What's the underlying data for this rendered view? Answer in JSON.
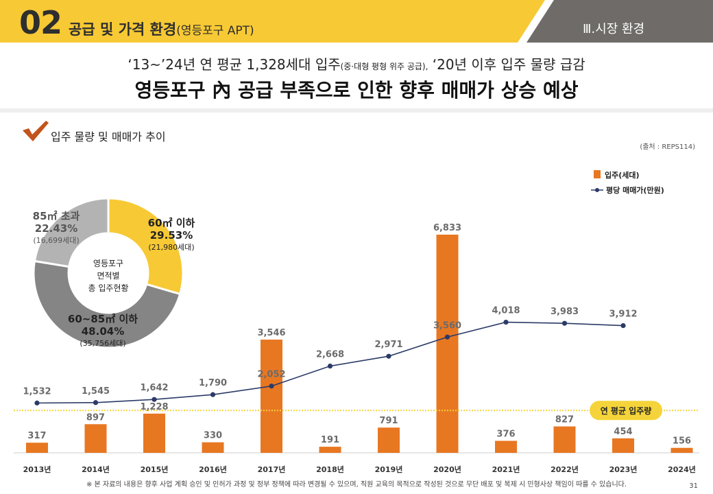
{
  "header": {
    "number": "02",
    "title": "공급 및 가격 환경",
    "title_suffix": "(영등포구 APT)",
    "section": "Ⅲ.시장 환경"
  },
  "headline": {
    "line1_a": "‘13~’24년 연 평균 1,328세대 입주",
    "line1_small": "(중·대형 평형 위주 공급),",
    "line1_b": " ‘20년 이후 입주 물량 급감",
    "line2": "영등포구 內 공급 부족으로 인한 향후 매매가 상승 예상"
  },
  "section_title": "입주 물량 및 매매가 추이",
  "source": "(출처 : REPS114)",
  "footnote": "※ 본 자료의 내용은 향후 사업 계획 승인 및 인허가 과정 및 정부 정책에 따라 변경될 수 있으며, 직원 교육의 목적으로 작성된 것으로 무단 배포 및 복제 시 민형사상 책임이 따를 수 있습니다.",
  "page_number": "31",
  "colors": {
    "yellow": "#f7c934",
    "dark_gray": "#6e6b68",
    "bar_orange": "#e87722",
    "line_navy": "#2b3a67",
    "donut_light_gray": "#b3b3b3",
    "donut_mid_gray": "#858585",
    "avg_line": "#f4d43a"
  },
  "chart_data": [
    {
      "type": "bar",
      "title": "",
      "categories": [
        "2013년",
        "2014년",
        "2015년",
        "2016년",
        "2017년",
        "2018년",
        "2019년",
        "2020년",
        "2021년",
        "2022년",
        "2023년",
        "2024년"
      ],
      "series": [
        {
          "name": "입주(세대)",
          "type": "bar",
          "values": [
            317,
            897,
            1228,
            330,
            3546,
            191,
            791,
            6833,
            376,
            827,
            454,
            156
          ]
        },
        {
          "name": "평당 매매가(만원)",
          "type": "line",
          "values": [
            1532,
            1545,
            1642,
            1790,
            2052,
            2668,
            2971,
            3560,
            4018,
            3983,
            3912,
            null
          ]
        }
      ],
      "value_labels": {
        "bars": [
          "317",
          "897",
          "1,228",
          "330",
          "3,546",
          "191",
          "791",
          "6,833",
          "376",
          "827",
          "454",
          "156"
        ],
        "line": [
          "1,532",
          "1,545",
          "1,642",
          "1,790",
          "2,052",
          "2,668",
          "2,971",
          "3,560",
          "4,018",
          "3,983",
          "3,912"
        ]
      },
      "reference_line": {
        "label": "연 평균 입주량",
        "value": 1328
      },
      "legend_position": "top-right",
      "grid": false
    },
    {
      "type": "pie",
      "title": "",
      "center_text": [
        "영등포구",
        "면적별",
        "총 입주현황"
      ],
      "slices": [
        {
          "label": "60㎡ 이하",
          "percent": 29.53,
          "percent_text": "29.53%",
          "count_text": "(21,980세대)"
        },
        {
          "label": "60~85㎡ 이하",
          "percent": 48.04,
          "percent_text": "48.04%",
          "count_text": "(35,756세대)"
        },
        {
          "label": "85㎡ 초과",
          "percent": 22.43,
          "percent_text": "22.43%",
          "count_text": "(16,699세대)"
        }
      ]
    }
  ]
}
